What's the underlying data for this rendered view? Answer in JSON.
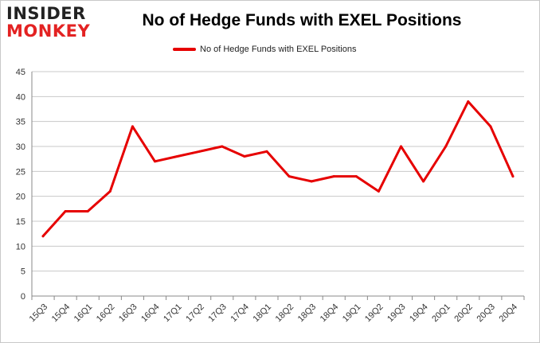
{
  "logo": {
    "top_text": "INSIDER",
    "bottom_text": "MONKEY"
  },
  "colors": {
    "series": "#e60000",
    "grid": "#c8c8c8",
    "logo_red": "#e32222"
  },
  "chart_data": {
    "type": "line",
    "title": "No of Hedge Funds with EXEL Positions",
    "xlabel": "",
    "ylabel": "",
    "legend_position": "top-center",
    "grid": true,
    "ylim": [
      0,
      45
    ],
    "yticks": [
      0,
      5,
      10,
      15,
      20,
      25,
      30,
      35,
      40,
      45
    ],
    "categories": [
      "15Q3",
      "15Q4",
      "16Q1",
      "16Q2",
      "16Q3",
      "16Q4",
      "17Q1",
      "17Q2",
      "17Q3",
      "17Q4",
      "18Q1",
      "18Q2",
      "18Q3",
      "18Q4",
      "19Q1",
      "19Q2",
      "19Q3",
      "19Q4",
      "20Q1",
      "20Q2",
      "20Q3",
      "20Q4"
    ],
    "series": [
      {
        "name": "No of Hedge Funds with EXEL Positions",
        "values": [
          12,
          17,
          17,
          21,
          34,
          27,
          28,
          29,
          30,
          28,
          29,
          24,
          23,
          24,
          24,
          21,
          30,
          23,
          30,
          39,
          34,
          24
        ]
      }
    ]
  }
}
